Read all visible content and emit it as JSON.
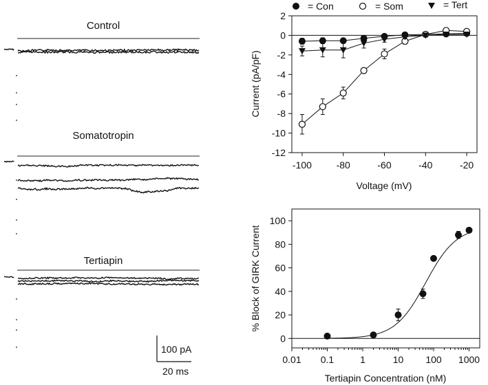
{
  "traces": {
    "labels": [
      "Control",
      "Somatotropin",
      "Tertiapin"
    ],
    "scale_bar": {
      "current": "100 pA",
      "time": "20 ms"
    }
  },
  "chart_data": [
    {
      "type": "line",
      "title": "",
      "xlabel": "Voltage (mV)",
      "ylabel": "Current (pA/pF)",
      "xlim": [
        -105,
        -15
      ],
      "ylim": [
        -12,
        2
      ],
      "xticks": [
        -100,
        -80,
        -60,
        -40,
        -20
      ],
      "yticks": [
        -12,
        -10,
        -8,
        -6,
        -4,
        -2,
        0,
        2
      ],
      "legend": [
        {
          "marker": "filled-circle",
          "label": "= Con"
        },
        {
          "marker": "open-circle",
          "label": "= Som"
        },
        {
          "marker": "filled-triangle-down",
          "label": "= Tert"
        }
      ],
      "series": [
        {
          "name": "Con",
          "marker": "filled-circle",
          "x": [
            -100,
            -90,
            -80,
            -70,
            -60,
            -50,
            -40,
            -30,
            -20
          ],
          "y": [
            -0.6,
            -0.55,
            -0.55,
            -0.3,
            -0.1,
            0.05,
            0.1,
            0.15,
            0.2
          ],
          "err": [
            0.3,
            0.3,
            0.25,
            0.2,
            0.1,
            0.1,
            0.1,
            0.1,
            0.1
          ]
        },
        {
          "name": "Som",
          "marker": "open-circle",
          "x": [
            -100,
            -90,
            -80,
            -70,
            -60,
            -50,
            -40,
            -30,
            -20
          ],
          "y": [
            -9.1,
            -7.3,
            -5.9,
            -3.6,
            -1.9,
            -0.6,
            0.1,
            0.5,
            0.4
          ],
          "err": [
            1.0,
            0.8,
            0.6,
            0.0,
            0.5,
            0.3,
            0.2,
            0.2,
            0.2
          ]
        },
        {
          "name": "Tert",
          "marker": "filled-triangle-down",
          "x": [
            -100,
            -90,
            -80,
            -70,
            -60,
            -50,
            -40,
            -30,
            -20
          ],
          "y": [
            -1.6,
            -1.5,
            -1.5,
            -0.8,
            -0.4,
            -0.15,
            0.0,
            0.1,
            0.1
          ],
          "err": [
            0.5,
            0.7,
            0.8,
            0.5,
            0.3,
            0.2,
            0.1,
            0.1,
            0.1
          ]
        }
      ]
    },
    {
      "type": "scatter",
      "title": "",
      "xlabel": "Tertiapin Concentration (nM)",
      "ylabel": "% Block of GIRK Current",
      "xscale": "log",
      "xlim": [
        0.01,
        2000
      ],
      "ylim": [
        -8,
        110
      ],
      "xticks": [
        0.01,
        0.1,
        1,
        10,
        100,
        1000
      ],
      "xticklabels": [
        "0.01",
        "0.1",
        "1",
        "10",
        "100",
        "1000"
      ],
      "yticks": [
        0,
        20,
        40,
        60,
        80,
        100
      ],
      "points": {
        "x": [
          0.1,
          2,
          10,
          50,
          100,
          500,
          1000
        ],
        "y": [
          2,
          3,
          20,
          38,
          68,
          88,
          92
        ],
        "err": [
          0,
          0,
          5,
          4,
          0,
          3,
          0
        ]
      },
      "fit": {
        "type": "hill",
        "top": 95,
        "ec50": 60,
        "hill": 1.0
      }
    }
  ]
}
